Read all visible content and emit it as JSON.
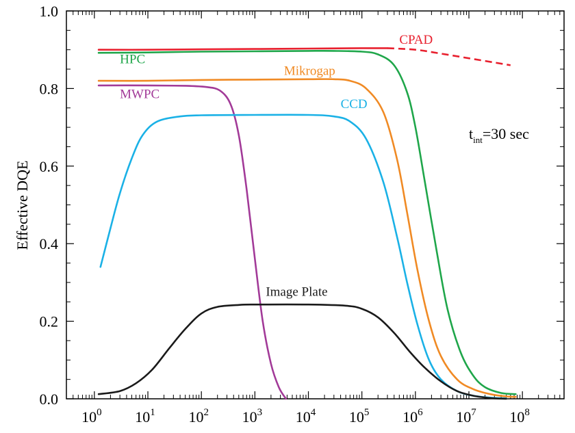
{
  "chart_data": {
    "type": "line",
    "title": "",
    "xlabel": "",
    "ylabel": "Effective DQE",
    "xscale": "log",
    "xlim": [
      0.3,
      600000000
    ],
    "ylim": [
      0,
      1.0
    ],
    "x_ticks": [
      {
        "value": 1,
        "mantissa": "10",
        "exp": "0"
      },
      {
        "value": 10,
        "mantissa": "10",
        "exp": "1"
      },
      {
        "value": 100,
        "mantissa": "10",
        "exp": "2"
      },
      {
        "value": 1000,
        "mantissa": "10",
        "exp": "3"
      },
      {
        "value": 10000,
        "mantissa": "10",
        "exp": "4"
      },
      {
        "value": 100000,
        "mantissa": "10",
        "exp": "5"
      },
      {
        "value": 1000000,
        "mantissa": "10",
        "exp": "6"
      },
      {
        "value": 10000000,
        "mantissa": "10",
        "exp": "7"
      },
      {
        "value": 100000000,
        "mantissa": "10",
        "exp": "8"
      }
    ],
    "y_ticks": [
      {
        "value": 0,
        "label": "0.0"
      },
      {
        "value": 0.2,
        "label": "0.2"
      },
      {
        "value": 0.4,
        "label": "0.4"
      },
      {
        "value": 0.6,
        "label": "0.6"
      },
      {
        "value": 0.8,
        "label": "0.8"
      },
      {
        "value": 1.0,
        "label": "1.0"
      }
    ],
    "grid": false,
    "legend": "inline labels",
    "annotation": {
      "base": "t",
      "sub": "int",
      "rest": "=30 sec",
      "x": 10000000,
      "y": 0.67
    },
    "series": [
      {
        "name": "CPAD",
        "color": "#e8202e",
        "label_at": {
          "x": 500000,
          "y": 0.915
        },
        "points": [
          [
            1.2,
            0.9
          ],
          [
            10,
            0.9
          ],
          [
            100,
            0.901
          ],
          [
            1000,
            0.902
          ],
          [
            10000,
            0.903
          ],
          [
            100000,
            0.904
          ],
          [
            300000,
            0.904
          ]
        ],
        "dashed_points": [
          [
            300000,
            0.904
          ],
          [
            1000000,
            0.9
          ],
          [
            3000000,
            0.89
          ],
          [
            10000000,
            0.878
          ],
          [
            30000000,
            0.867
          ],
          [
            60000000,
            0.86
          ]
        ]
      },
      {
        "name": "HPC",
        "color": "#1fa64a",
        "label_at": {
          "x": 3,
          "y": 0.865
        },
        "points": [
          [
            1.2,
            0.892
          ],
          [
            10,
            0.893
          ],
          [
            100,
            0.895
          ],
          [
            1000,
            0.896
          ],
          [
            10000,
            0.897
          ],
          [
            30000,
            0.897
          ],
          [
            100000,
            0.895
          ],
          [
            200000,
            0.888
          ],
          [
            400000,
            0.86
          ],
          [
            700000,
            0.79
          ],
          [
            1000000,
            0.7
          ],
          [
            1500000,
            0.56
          ],
          [
            2500000,
            0.38
          ],
          [
            4000000,
            0.23
          ],
          [
            7000000,
            0.12
          ],
          [
            12000000,
            0.06
          ],
          [
            20000000,
            0.03
          ],
          [
            40000000,
            0.015
          ],
          [
            75000000,
            0.012
          ]
        ]
      },
      {
        "name": "Mikrogap",
        "color": "#f08a24",
        "label_at": {
          "x": 3500,
          "y": 0.835
        },
        "points": [
          [
            1.2,
            0.82
          ],
          [
            10,
            0.82
          ],
          [
            100,
            0.822
          ],
          [
            1000,
            0.823
          ],
          [
            10000,
            0.824
          ],
          [
            30000,
            0.824
          ],
          [
            60000,
            0.82
          ],
          [
            120000,
            0.8
          ],
          [
            250000,
            0.74
          ],
          [
            450000,
            0.62
          ],
          [
            700000,
            0.48
          ],
          [
            1100000,
            0.33
          ],
          [
            1800000,
            0.2
          ],
          [
            3000000,
            0.11
          ],
          [
            6000000,
            0.05
          ],
          [
            12000000,
            0.025
          ],
          [
            25000000,
            0.012
          ],
          [
            50000000,
            0.006
          ],
          [
            75000000,
            0.005
          ]
        ]
      },
      {
        "name": "MWPC",
        "color": "#a23a98",
        "label_at": {
          "x": 3,
          "y": 0.775
        },
        "points": [
          [
            1.2,
            0.808
          ],
          [
            10,
            0.808
          ],
          [
            50,
            0.807
          ],
          [
            120,
            0.804
          ],
          [
            220,
            0.795
          ],
          [
            350,
            0.76
          ],
          [
            500,
            0.68
          ],
          [
            700,
            0.54
          ],
          [
            1000,
            0.36
          ],
          [
            1400,
            0.2
          ],
          [
            2000,
            0.09
          ],
          [
            2800,
            0.03
          ],
          [
            3800,
            0.0
          ]
        ]
      },
      {
        "name": "CCD",
        "color": "#1ab1e6",
        "label_at": {
          "x": 40000,
          "y": 0.75
        },
        "points": [
          [
            1.3,
            0.34
          ],
          [
            2,
            0.44
          ],
          [
            3,
            0.53
          ],
          [
            5,
            0.62
          ],
          [
            8,
            0.68
          ],
          [
            15,
            0.715
          ],
          [
            40,
            0.728
          ],
          [
            100,
            0.731
          ],
          [
            1000,
            0.732
          ],
          [
            10000,
            0.732
          ],
          [
            30000,
            0.728
          ],
          [
            60000,
            0.715
          ],
          [
            120000,
            0.67
          ],
          [
            250000,
            0.56
          ],
          [
            450000,
            0.42
          ],
          [
            700000,
            0.3
          ],
          [
            1100000,
            0.19
          ],
          [
            1800000,
            0.1
          ],
          [
            3000000,
            0.05
          ],
          [
            6000000,
            0.02
          ],
          [
            12000000,
            0.008
          ],
          [
            25000000,
            0.003
          ],
          [
            50000000,
            0.001
          ]
        ]
      },
      {
        "name": "Image Plate",
        "color": "#1a1a1a",
        "label_at": {
          "x": 1600,
          "y": 0.265
        },
        "points": [
          [
            1.2,
            0.012
          ],
          [
            3,
            0.02
          ],
          [
            6,
            0.04
          ],
          [
            12,
            0.075
          ],
          [
            25,
            0.13
          ],
          [
            50,
            0.18
          ],
          [
            100,
            0.22
          ],
          [
            200,
            0.237
          ],
          [
            500,
            0.242
          ],
          [
            1000,
            0.243
          ],
          [
            10000,
            0.243
          ],
          [
            50000,
            0.24
          ],
          [
            100000,
            0.232
          ],
          [
            200000,
            0.21
          ],
          [
            400000,
            0.17
          ],
          [
            800000,
            0.12
          ],
          [
            1500000,
            0.08
          ],
          [
            3000000,
            0.045
          ],
          [
            6000000,
            0.02
          ],
          [
            12000000,
            0.008
          ],
          [
            25000000,
            0.002
          ],
          [
            50000000,
            0.0
          ]
        ]
      }
    ]
  }
}
